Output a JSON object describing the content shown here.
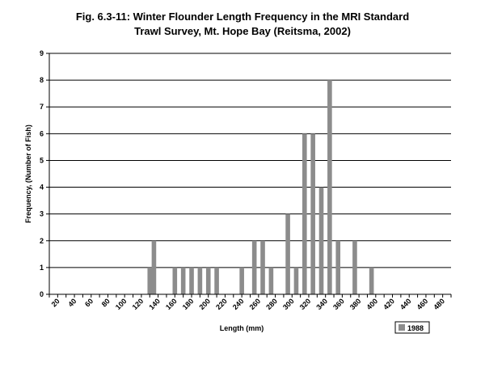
{
  "chart_data": {
    "type": "bar",
    "title_line1": "Fig. 6.3-11: Winter Flounder Length Frequency in the MRI Standard",
    "title_line2": "Trawl Survey, Mt. Hope Bay (Reitsma, 2002)",
    "xlabel": "Length (mm)",
    "ylabel": "Frequency, (Number of Fish)",
    "ylim": [
      0,
      9
    ],
    "yticks": [
      "0",
      "1",
      "2",
      "3",
      "4",
      "5",
      "6",
      "7",
      "8",
      "9"
    ],
    "xticks": [
      "20",
      "40",
      "60",
      "80",
      "100",
      "120",
      "140",
      "160",
      "180",
      "200",
      "220",
      "240",
      "260",
      "280",
      "300",
      "320",
      "340",
      "360",
      "380",
      "400",
      "420",
      "440",
      "460",
      "480"
    ],
    "grid": "horizontal",
    "legend_position": "bottom-right",
    "series": [
      {
        "name": "1988",
        "color": "#8c8c8c",
        "points": [
          {
            "x": 130,
            "y": 1
          },
          {
            "x": 135,
            "y": 2
          },
          {
            "x": 160,
            "y": 1
          },
          {
            "x": 170,
            "y": 1
          },
          {
            "x": 180,
            "y": 1
          },
          {
            "x": 190,
            "y": 1
          },
          {
            "x": 200,
            "y": 1
          },
          {
            "x": 210,
            "y": 1
          },
          {
            "x": 240,
            "y": 1
          },
          {
            "x": 255,
            "y": 2
          },
          {
            "x": 265,
            "y": 2
          },
          {
            "x": 275,
            "y": 1
          },
          {
            "x": 295,
            "y": 3
          },
          {
            "x": 305,
            "y": 1
          },
          {
            "x": 315,
            "y": 6
          },
          {
            "x": 325,
            "y": 6
          },
          {
            "x": 335,
            "y": 4
          },
          {
            "x": 345,
            "y": 8
          },
          {
            "x": 355,
            "y": 2
          },
          {
            "x": 375,
            "y": 2
          },
          {
            "x": 395,
            "y": 1
          }
        ]
      }
    ]
  }
}
